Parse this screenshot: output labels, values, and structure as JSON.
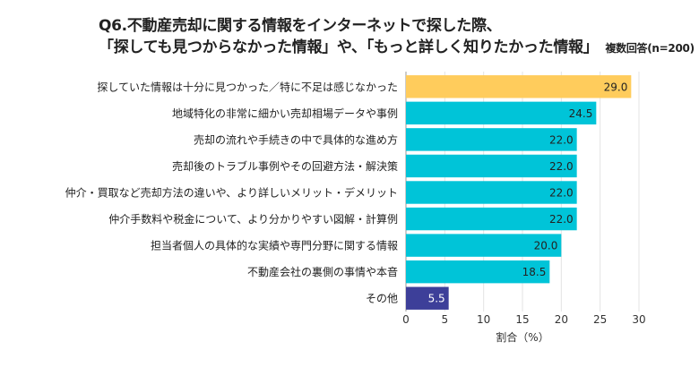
{
  "chart_data": {
    "type": "bar",
    "orientation": "horizontal",
    "title_line1": "Q6.不動産売却に関する情報をインターネットで探した際、",
    "title_line2": "「探しても見つからなかった情報」や、「もっと詳しく知りたかった情報」",
    "subtitle": "複数回答(n=200)",
    "xlabel": "割合（%）",
    "ylabel": "",
    "xlim": [
      0,
      30
    ],
    "xticks": [
      0,
      5,
      10,
      15,
      20,
      25,
      30
    ],
    "grid": true,
    "categories": [
      "探していた情報は十分に見つかった／特に不足は感じなかった",
      "地域特化の非常に細かい売却相場データや事例",
      "売却の流れや手続きの中で具体的な進め方",
      "売却後のトラブル事例やその回避方法・解決策",
      "仲介・買取など売却方法の違いや、より詳しいメリット・デメリット",
      "仲介手数料や税金について、より分かりやすい図解・計算例",
      "担当者個人の具体的な実績や専門分野に関する情報",
      "不動産会社の裏側の事情や本音",
      "その他"
    ],
    "values": [
      29.0,
      24.5,
      22.0,
      22.0,
      22.0,
      22.0,
      20.0,
      18.5,
      5.5
    ],
    "value_labels": [
      "29.0",
      "24.5",
      "22.0",
      "22.0",
      "22.0",
      "22.0",
      "20.0",
      "18.5",
      "5.5"
    ],
    "colors": [
      "#FFCC5C",
      "#00C4D8",
      "#00C4D8",
      "#00C4D8",
      "#00C4D8",
      "#00C4D8",
      "#00C4D8",
      "#00C4D8",
      "#3D3F99"
    ],
    "label_colors": [
      "#222222",
      "#222222",
      "#222222",
      "#222222",
      "#222222",
      "#222222",
      "#222222",
      "#222222",
      "#ffffff"
    ]
  }
}
